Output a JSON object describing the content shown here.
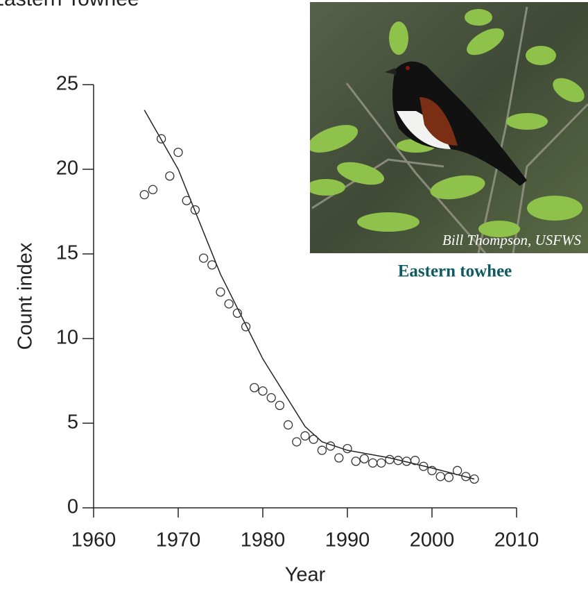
{
  "chart_data": {
    "type": "scatter",
    "title": "Eastern Towhee",
    "x_label": "Year",
    "y_label": "Count index",
    "xlim": [
      1960,
      2010
    ],
    "ylim": [
      0,
      25
    ],
    "xticks": [
      1960,
      1970,
      1980,
      1990,
      2000,
      2010
    ],
    "yticks": [
      0,
      5,
      10,
      15,
      20,
      25
    ],
    "points": {
      "x": [
        1966,
        1967,
        1968,
        1969,
        1970,
        1971,
        1972,
        1973,
        1974,
        1975,
        1976,
        1977,
        1978,
        1979,
        1980,
        1981,
        1982,
        1983,
        1984,
        1985,
        1986,
        1987,
        1988,
        1989,
        1990,
        1991,
        1992,
        1993,
        1994,
        1995,
        1996,
        1997,
        1998,
        1999,
        2000,
        2001,
        2002,
        2003,
        2004,
        2005
      ],
      "values": [
        18.5,
        18.8,
        21.8,
        19.6,
        21.0,
        18.15,
        17.6,
        14.75,
        14.35,
        12.75,
        12.05,
        11.5,
        10.7,
        7.1,
        6.9,
        6.5,
        6.05,
        4.9,
        3.9,
        4.25,
        4.05,
        3.4,
        3.65,
        2.95,
        3.5,
        2.75,
        2.9,
        2.65,
        2.65,
        2.85,
        2.8,
        2.75,
        2.8,
        2.45,
        2.2,
        1.85,
        1.8,
        2.2,
        1.85,
        1.7
      ],
      "color": "#333333"
    },
    "trend": {
      "x": [
        1966,
        1970,
        1975,
        1980,
        1985,
        1987,
        1990,
        1995,
        2000,
        2005
      ],
      "values": [
        23.5,
        20.0,
        13.8,
        8.8,
        4.8,
        3.9,
        3.4,
        2.95,
        2.35,
        1.7
      ],
      "color": "#222222"
    },
    "photo_credit": "Bill Thompson, USFWS",
    "photo_caption": "Eastern towhee"
  }
}
